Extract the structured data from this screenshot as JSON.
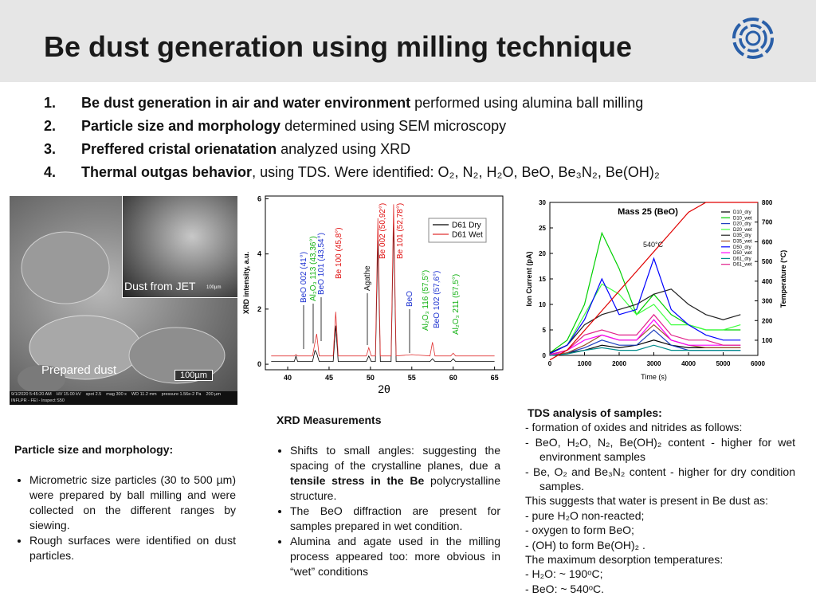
{
  "header": {
    "title": "Be dust generation using milling technique"
  },
  "objectives": [
    {
      "number": "1.",
      "bold": "Be dust generation in air and water environment",
      "text": " performed using alumina ball milling"
    },
    {
      "number": "2.",
      "bold": "Particle size and morphology",
      "text": " determined using SEM microscopy"
    },
    {
      "number": "3.",
      "bold": "Preffered cristal orienatation",
      "text": " analyzed using XRD"
    },
    {
      "number": "4.",
      "bold": "Thermal outgas behavior",
      "text": ", using TDS. Were identified: O₂, N₂, H₂O, BeO, Be₃N₂, Be(OH)₂"
    }
  ],
  "sem_image": {
    "inset_label": "Dust from JET",
    "inset_scale": "100µm",
    "label": "Prepared dust",
    "scale": "100µm",
    "info": [
      "9/1/2020 5:45:20 AM",
      "HV 15.00 kV",
      "spot 2.5",
      "mag 300 x",
      "WD 11.2 mm",
      "pressure 1.56e-2 Pa",
      "200 µm",
      "INFLPR - FEI - Inspect S50"
    ]
  },
  "chart_data": [
    {
      "type": "line",
      "xlabel": "2θ",
      "ylabel": "XRD intensity, a.u.",
      "x": [
        38,
        40,
        40.8,
        41,
        41.2,
        43,
        43.3,
        43.5,
        43.8,
        45.5,
        45.8,
        46.1,
        49.5,
        49.8,
        50.1,
        50.6,
        50.9,
        51.2,
        52.5,
        52.8,
        53.1,
        55,
        57.2,
        57.5,
        57.8,
        59.7,
        60,
        60.3,
        65
      ],
      "series": [
        {
          "name": "D61 Dry",
          "color": "#000000",
          "values": [
            0.1,
            0.1,
            0.1,
            0.3,
            0.1,
            0.1,
            0.5,
            0.4,
            0.1,
            0.1,
            1.4,
            0.1,
            0.1,
            0.3,
            0.1,
            0.1,
            4.5,
            0.1,
            0.1,
            5.2,
            0.1,
            0.1,
            0.1,
            0.2,
            0.1,
            0.1,
            0.2,
            0.1,
            0.1
          ]
        },
        {
          "name": "D61 Wet",
          "color": "#e03030",
          "values": [
            0.3,
            0.3,
            0.3,
            0.35,
            0.3,
            0.3,
            0.8,
            1.1,
            0.3,
            0.3,
            1.9,
            0.3,
            0.3,
            0.6,
            0.3,
            0.3,
            5.3,
            0.3,
            0.3,
            5.8,
            0.3,
            0.35,
            0.3,
            0.8,
            0.3,
            0.3,
            0.4,
            0.3,
            0.3
          ]
        }
      ],
      "xlim": [
        37.3,
        66
      ],
      "ylim": [
        -0.2,
        6.1
      ],
      "xticks": [
        40,
        45,
        50,
        55,
        60,
        65
      ],
      "yticks": [
        0,
        2,
        4,
        6
      ],
      "legend": "upper right",
      "annotations": [
        {
          "text": "BeO 002 (41°)",
          "color": "#1a2fd0"
        },
        {
          "text": "Al₂O₃ 113 (43,36°)",
          "color": "#10b010"
        },
        {
          "text": "BeO 101 (43,54°)",
          "color": "#1a2fd0"
        },
        {
          "text": "Be 100 (45,8°)",
          "color": "#e01010"
        },
        {
          "text": "Agathe",
          "color": "#111111"
        },
        {
          "text": "Be 002 (50,92°)",
          "color": "#e01010"
        },
        {
          "text": "Be 101 (52,78°)",
          "color": "#e01010"
        },
        {
          "text": "BeO",
          "color": "#1a2fd0"
        },
        {
          "text": "Al₂O₃ 116 (57,5°)",
          "color": "#10b010"
        },
        {
          "text": "BeO 102 (57,6°)",
          "color": "#1a2fd0"
        },
        {
          "text": "Al₂O₃ 211 (57,5°)",
          "color": "#10b010"
        }
      ]
    },
    {
      "type": "line",
      "title": "Mass 25 (BeO)",
      "xlabel": "Time (s)",
      "ylabel": "Ion Current (pA)",
      "y2label": "Temperature (°C)",
      "x": [
        0,
        500,
        1000,
        1500,
        2000,
        2500,
        3000,
        3500,
        4000,
        4500,
        5000,
        5500,
        6000
      ],
      "series": [
        {
          "name": "D10_dry",
          "color": "#000000",
          "values": [
            0,
            0.5,
            1,
            2,
            1.5,
            2,
            3,
            2,
            1.5,
            1.5,
            1.5,
            1.5,
            null
          ]
        },
        {
          "name": "D10_wet",
          "color": "#00d000",
          "values": [
            0.5,
            3,
            10,
            24,
            17,
            8,
            12,
            8,
            6,
            5,
            5,
            5,
            null
          ]
        },
        {
          "name": "D20_dry",
          "color": "#1f3fbf",
          "values": [
            0,
            0.5,
            1.5,
            3,
            2,
            2,
            5,
            2,
            1,
            1,
            1,
            1,
            null
          ]
        },
        {
          "name": "D20_wet",
          "color": "#40ff40",
          "values": [
            0.5,
            2,
            8,
            14,
            12,
            8,
            10,
            6,
            6,
            5,
            5,
            6,
            null
          ]
        },
        {
          "name": "D35_dry",
          "color": "#202020",
          "values": [
            0.5,
            2,
            6,
            8,
            9,
            10,
            12,
            13,
            10,
            8,
            7,
            8,
            null
          ]
        },
        {
          "name": "D35_wet",
          "color": "#a0522d",
          "values": [
            0,
            0.5,
            2,
            4,
            3,
            3,
            6,
            3,
            2,
            1.5,
            1.5,
            1.5,
            null
          ]
        },
        {
          "name": "D50_dry",
          "color": "#0000ff",
          "values": [
            0.3,
            2,
            7,
            15,
            8,
            9,
            19,
            9,
            6,
            4,
            3,
            3,
            null
          ]
        },
        {
          "name": "D50_wet",
          "color": "#ff00ff",
          "values": [
            0,
            1,
            3,
            4,
            3,
            3,
            7,
            3,
            2,
            2,
            2,
            2,
            null
          ]
        },
        {
          "name": "D61_dry",
          "color": "#008b8b",
          "values": [
            0,
            0.3,
            1,
            1.5,
            1,
            1,
            2,
            1,
            1,
            1,
            1,
            1,
            null
          ]
        },
        {
          "name": "D61_wet",
          "color": "#e0208a",
          "values": [
            0.2,
            1,
            4,
            5,
            4,
            4,
            8,
            4,
            3,
            3,
            2,
            2,
            null
          ]
        },
        {
          "color": "#e00000",
          "axis": "y2",
          "values": [
            0,
            50,
            150,
            250,
            350,
            450,
            550,
            650,
            750,
            800,
            800,
            800,
            800
          ]
        }
      ],
      "xlim": [
        0,
        6000
      ],
      "ylim": [
        0,
        30
      ],
      "y2lim": [
        23,
        800
      ],
      "xticks": [
        0,
        1000,
        2000,
        3000,
        4000,
        5000,
        6000
      ],
      "yticks": [
        0,
        5,
        10,
        15,
        20,
        25,
        30
      ],
      "y2ticks": [
        100,
        200,
        300,
        400,
        500,
        600,
        700,
        800
      ],
      "legend": "upper right",
      "annotations": [
        {
          "text": "540°C",
          "color": "#111111"
        }
      ]
    }
  ],
  "particle_section": {
    "heading": "Particle size and morphology:",
    "bullets": [
      "Micrometric size particles (30 to 500 µm) were prepared by ball milling and were collected on the different ranges by siewing.",
      "Rough surfaces were identified on dust particles."
    ]
  },
  "xrd_section": {
    "heading": "XRD Measurements",
    "bullets": [
      {
        "before": "Shifts to small angles: suggesting the spacing of the crystalline planes, due a ",
        "bold": "tensile stress in the Be",
        "after": " polycrystalline structure."
      },
      {
        "before": "The BeO diffraction are present for samples prepared in wet condition."
      },
      {
        "before": "Alumina and agate used in the milling process appeared too: more obvious in “wet” conditions"
      }
    ]
  },
  "tds_section": {
    "heading": "TDS analysis of samples:",
    "lines": [
      "- formation of oxides and nitrides as follows:",
      "- BeO, H₂O, N₂, Be(OH)₂ content - higher for wet environment samples",
      "- Be, O₂ and Be₃N₂ content - higher for dry condition samples.",
      "This suggests that water is present in Be dust as:",
      "- pure H₂O non-reacted;",
      "- oxygen to form BeO;",
      "- (OH) to form Be(OH)₂ .",
      "The maximum desorption temperatures:",
      " - H₂O: ~ 190ᵒC;",
      " - BeO: ~ 540ᵒC."
    ]
  }
}
